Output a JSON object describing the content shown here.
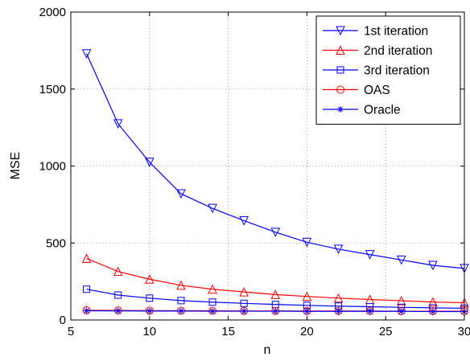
{
  "chart_data": {
    "type": "line",
    "title": "",
    "xlabel": "n",
    "ylabel": "MSE",
    "xlim": [
      5,
      30
    ],
    "ylim": [
      0,
      2000
    ],
    "xticks": [
      5,
      10,
      15,
      20,
      25,
      30
    ],
    "yticks": [
      0,
      500,
      1000,
      1500,
      2000
    ],
    "grid": true,
    "legend_position": "top-right",
    "x": [
      6,
      8,
      10,
      12,
      14,
      16,
      18,
      20,
      22,
      24,
      26,
      28,
      30
    ],
    "series": [
      {
        "name": "1st iteration",
        "color": "#0000ff",
        "marker": "triangle-down",
        "values": [
          1730,
          1275,
          1025,
          820,
          725,
          645,
          570,
          505,
          460,
          425,
          390,
          355,
          335
        ]
      },
      {
        "name": "2nd iteration",
        "color": "#ff0000",
        "marker": "triangle-up",
        "values": [
          400,
          315,
          265,
          225,
          200,
          182,
          165,
          153,
          142,
          133,
          125,
          117,
          112
        ]
      },
      {
        "name": "3rd iteration",
        "color": "#0000ff",
        "marker": "square",
        "values": [
          200,
          162,
          142,
          126,
          116,
          108,
          101,
          95,
          90,
          86,
          82,
          79,
          76
        ]
      },
      {
        "name": "OAS",
        "color": "#ff0000",
        "marker": "circle",
        "values": [
          63,
          62,
          61,
          60,
          60,
          59,
          59,
          58,
          58,
          58,
          57,
          57,
          57
        ]
      },
      {
        "name": "Oracle",
        "color": "#0000ff",
        "marker": "asterisk",
        "values": [
          60,
          59,
          58,
          58,
          57,
          57,
          57,
          56,
          56,
          56,
          56,
          55,
          55
        ]
      }
    ]
  }
}
